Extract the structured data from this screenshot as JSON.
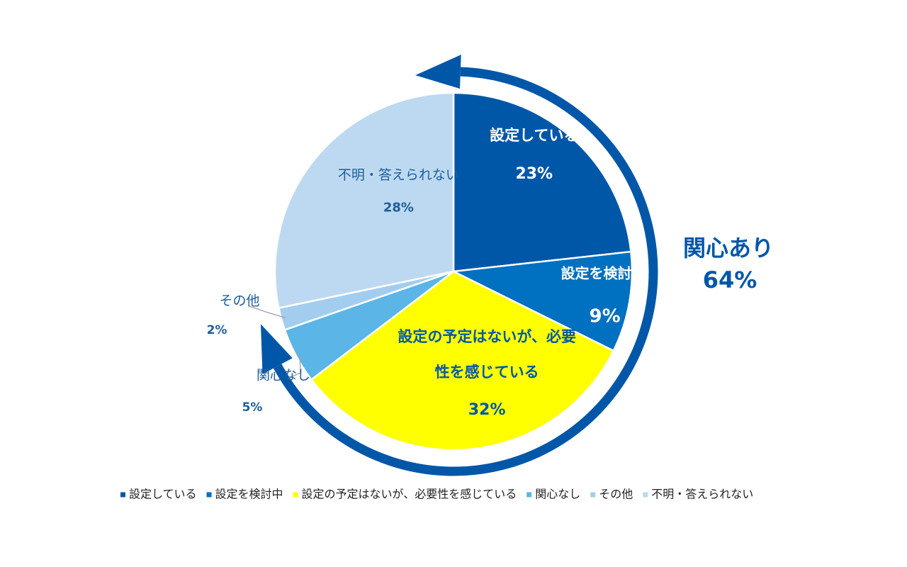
{
  "chart_data": {
    "type": "pie",
    "slices": [
      {
        "label": "設定している",
        "value": 23,
        "value_label": "23%",
        "color": "#0057A8"
      },
      {
        "label": "設定を検討中",
        "value": 9,
        "value_label": "9%",
        "color": "#0070C0"
      },
      {
        "label": "設定の予定はないが、必要性を感じている",
        "value": 32,
        "value_label": "32%",
        "color": "#FFFF00"
      },
      {
        "label": "関心なし",
        "value": 5,
        "value_label": "5%",
        "color": "#5BB5E6"
      },
      {
        "label": "その他",
        "value": 2,
        "value_label": "2%",
        "color": "#A2CDEF"
      },
      {
        "label": "不明・答えられない",
        "value": 28,
        "value_label": "28%",
        "color": "#BDD9F1"
      }
    ],
    "annotation": {
      "label": "関心あり",
      "value_label": "64%",
      "color": "#0057A8"
    },
    "legend": {
      "placement": "bottom",
      "items": [
        "設定している",
        "設定を検討中",
        "設定の予定はないが、必要性を感じている",
        "関心なし",
        "その他",
        "不明・答えられない"
      ]
    }
  }
}
